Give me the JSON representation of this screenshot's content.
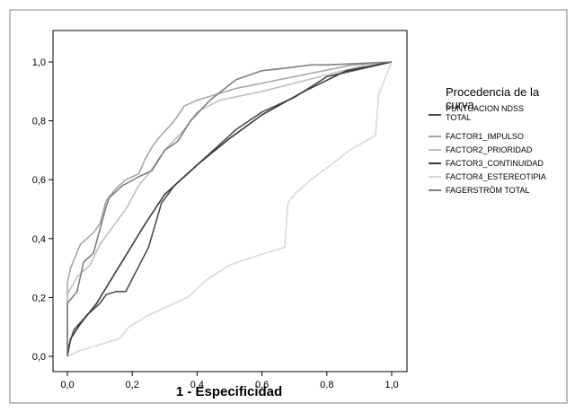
{
  "chart_data": {
    "type": "line",
    "title": "",
    "xlabel": "1 - Especificidad",
    "ylabel": "",
    "xlim": [
      0,
      1
    ],
    "ylim": [
      0,
      1
    ],
    "xticks": [
      0,
      0.2,
      0.4,
      0.6,
      0.8,
      1.0
    ],
    "yticks": [
      0,
      0.2,
      0.4,
      0.6,
      0.8,
      1.0
    ],
    "xtick_labels": [
      "0,0",
      "0,2",
      "0,4",
      "0,6",
      "0,8",
      "1,0"
    ],
    "ytick_labels": [
      "0,0",
      "0,2",
      "0,4",
      "0,6",
      "0,8",
      "1,0"
    ],
    "grid": false,
    "legend": {
      "title": "Procedencia de la curva",
      "placement": "right"
    },
    "series": [
      {
        "name": "PUNTUACION NDSS TOTAL",
        "color": "#4d4d4d",
        "x": [
          0,
          0.0,
          0.02,
          0.06,
          0.1,
          0.12,
          0.15,
          0.18,
          0.25,
          0.29,
          0.33,
          0.37,
          0.47,
          0.52,
          0.6,
          0.7,
          0.8,
          0.92,
          1.0
        ],
        "y": [
          0,
          0.02,
          0.09,
          0.14,
          0.18,
          0.21,
          0.22,
          0.22,
          0.37,
          0.52,
          0.58,
          0.62,
          0.72,
          0.77,
          0.83,
          0.88,
          0.95,
          0.98,
          1.0
        ]
      },
      {
        "name": "FACTOR1_IMPULSO",
        "color": "#a6a6a6",
        "x": [
          0,
          0.0,
          0.01,
          0.04,
          0.08,
          0.1,
          0.12,
          0.15,
          0.18,
          0.22,
          0.24,
          0.26,
          0.28,
          0.33,
          0.36,
          0.4,
          0.52,
          0.7,
          0.88,
          1.0
        ],
        "y": [
          0,
          0.25,
          0.3,
          0.38,
          0.42,
          0.45,
          0.53,
          0.57,
          0.6,
          0.62,
          0.67,
          0.71,
          0.74,
          0.8,
          0.85,
          0.87,
          0.91,
          0.95,
          0.99,
          1.0
        ]
      },
      {
        "name": "FACTOR2_PRIORIDAD",
        "color": "#bfbfbf",
        "x": [
          0,
          0.0,
          0.03,
          0.07,
          0.1,
          0.14,
          0.18,
          0.22,
          0.25,
          0.3,
          0.36,
          0.4,
          0.47,
          0.6,
          0.78,
          0.92,
          1.0
        ],
        "y": [
          0,
          0.21,
          0.27,
          0.31,
          0.38,
          0.44,
          0.5,
          0.58,
          0.62,
          0.7,
          0.77,
          0.83,
          0.87,
          0.9,
          0.95,
          0.99,
          1.0
        ]
      },
      {
        "name": "FACTOR3_CONTINUIDAD",
        "color": "#3a3a3a",
        "x": [
          0,
          0.01,
          0.04,
          0.09,
          0.14,
          0.19,
          0.24,
          0.3,
          0.4,
          0.5,
          0.6,
          0.73,
          0.86,
          1.0
        ],
        "y": [
          0,
          0.06,
          0.11,
          0.18,
          0.27,
          0.36,
          0.45,
          0.55,
          0.65,
          0.74,
          0.82,
          0.9,
          0.97,
          1.0
        ]
      },
      {
        "name": "FACTOR4_ESTEREOTIPIA",
        "color": "#d9d9d9",
        "x": [
          0,
          0.04,
          0.1,
          0.16,
          0.19,
          0.25,
          0.31,
          0.37,
          0.43,
          0.5,
          0.58,
          0.64,
          0.67,
          0.68,
          0.7,
          0.75,
          0.8,
          0.87,
          0.95,
          0.96,
          1.0
        ],
        "y": [
          0,
          0.02,
          0.04,
          0.06,
          0.1,
          0.14,
          0.17,
          0.2,
          0.26,
          0.31,
          0.34,
          0.36,
          0.37,
          0.52,
          0.55,
          0.6,
          0.64,
          0.7,
          0.75,
          0.89,
          1.0
        ]
      },
      {
        "name": "FAGERSTRÖM TOTAL",
        "color": "#7f7f7f",
        "x": [
          0,
          0.0,
          0.03,
          0.05,
          0.08,
          0.1,
          0.12,
          0.13,
          0.17,
          0.22,
          0.26,
          0.3,
          0.34,
          0.38,
          0.44,
          0.52,
          0.6,
          0.68,
          0.75,
          0.8,
          1.0
        ],
        "y": [
          0,
          0.18,
          0.22,
          0.32,
          0.35,
          0.43,
          0.51,
          0.54,
          0.58,
          0.61,
          0.63,
          0.7,
          0.73,
          0.8,
          0.87,
          0.94,
          0.97,
          0.98,
          0.99,
          0.99,
          1.0
        ]
      }
    ]
  }
}
